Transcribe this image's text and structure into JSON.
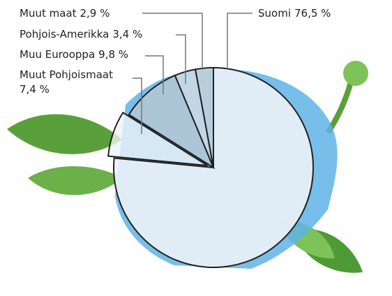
{
  "chart_data": {
    "type": "pie",
    "categories": [
      "Suomi",
      "Muut Pohjoismaat",
      "Muu Eurooppa",
      "Pohjois-Amerikka",
      "Muut maat"
    ],
    "values": [
      76.5,
      7.4,
      9.8,
      3.4,
      2.9
    ],
    "value_labels": [
      "76,5 %",
      "7,4 %",
      "9,8 %",
      "3,4 %",
      "2,9 %"
    ],
    "colors": [
      "#e9f1f7",
      "#eef2f5",
      "#b9c8d3",
      "#d3dde4",
      "#c7d2da"
    ],
    "exploded": [
      1
    ]
  }
}
